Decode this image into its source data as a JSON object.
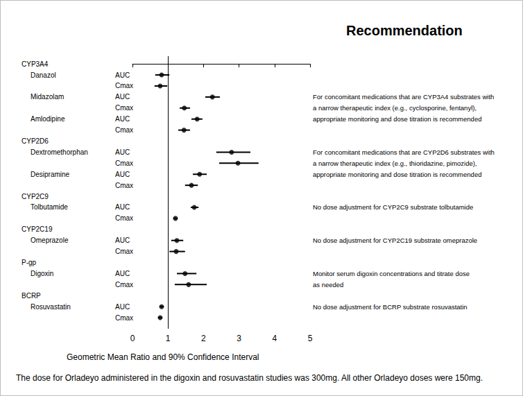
{
  "chart_data": {
    "type": "forest",
    "title": "Recommendation",
    "x_label": "Geometric Mean Ratio and 90% Confidence Interval",
    "footnote": "The dose for Orladeyo administered in the digoxin and rosuvastatin studies was 300mg. All other Orladeyo doses were 150mg.",
    "xlim": [
      0,
      5
    ],
    "xticks": [
      0,
      1,
      2,
      3,
      4,
      5
    ],
    "reference_line": 1,
    "color": "#000000",
    "groups": [
      {
        "name": "CYP3A4",
        "recommendation": [
          "For concomitant medications that are CYP3A4 substrates with",
          "a narrow therapeutic index (e.g., cyclosporine, fentanyl),",
          "appropriate monitoring and dose titration is recommended"
        ],
        "drugs": [
          {
            "name": "Danazol",
            "measures": [
              {
                "label": "AUC",
                "value": 0.82,
                "ci": [
                  0.64,
                  1.04
                ]
              },
              {
                "label": "Cmax",
                "value": 0.78,
                "ci": [
                  0.62,
                  0.98
                ]
              }
            ]
          },
          {
            "name": "Midazolam",
            "measures": [
              {
                "label": "AUC",
                "value": 2.25,
                "ci": [
                  2.05,
                  2.46
                ]
              },
              {
                "label": "Cmax",
                "value": 1.46,
                "ci": [
                  1.33,
                  1.62
                ]
              }
            ]
          },
          {
            "name": "Amlodipine",
            "measures": [
              {
                "label": "AUC",
                "value": 1.82,
                "ci": [
                  1.66,
                  1.97
                ]
              },
              {
                "label": "Cmax",
                "value": 1.45,
                "ci": [
                  1.29,
                  1.62
                ]
              }
            ]
          }
        ]
      },
      {
        "name": "CYP2D6",
        "recommendation": [
          "For concomitant medications that are CYP2D6 substrates with",
          "a narrow therapeutic index (e.g., thioridazine, pimozide),",
          "appropriate monitoring and dose titration is recommended"
        ],
        "drugs": [
          {
            "name": "Dextromethorphan",
            "measures": [
              {
                "label": "AUC",
                "value": 2.79,
                "ci": [
                  2.36,
                  3.32
                ]
              },
              {
                "label": "Cmax",
                "value": 2.97,
                "ci": [
                  2.44,
                  3.55
                ]
              }
            ]
          },
          {
            "name": "Desipramine",
            "measures": [
              {
                "label": "AUC",
                "value": 1.89,
                "ci": [
                  1.7,
                  2.09
                ]
              },
              {
                "label": "Cmax",
                "value": 1.66,
                "ci": [
                  1.48,
                  1.84
                ]
              }
            ]
          }
        ]
      },
      {
        "name": "CYP2C9",
        "recommendation": [
          "No dose adjustment for CYP2C9 substrate tolbutamide"
        ],
        "drugs": [
          {
            "name": "Tolbutamide",
            "measures": [
              {
                "label": "AUC",
                "value": 1.74,
                "ci": [
                  1.64,
                  1.86
                ]
              },
              {
                "label": "Cmax",
                "value": 1.21,
                "ci": [
                  1.15,
                  1.27
                ]
              }
            ]
          }
        ]
      },
      {
        "name": "CYP2C19",
        "recommendation": [
          "No dose adjustment for CYP2C19 substrate omeprazole"
        ],
        "drugs": [
          {
            "name": "Omeprazole",
            "measures": [
              {
                "label": "AUC",
                "value": 1.25,
                "ci": [
                  1.09,
                  1.43
                ]
              },
              {
                "label": "Cmax",
                "value": 1.23,
                "ci": [
                  1.04,
                  1.48
                ]
              }
            ]
          }
        ]
      },
      {
        "name": "P-gp",
        "recommendation": [
          "Monitor serum digoxin concentrations and titrate dose",
          "as needed"
        ],
        "drugs": [
          {
            "name": "Digoxin",
            "measures": [
              {
                "label": "AUC",
                "value": 1.48,
                "ci": [
                  1.25,
                  1.8
                ]
              },
              {
                "label": "Cmax",
                "value": 1.58,
                "ci": [
                  1.19,
                  2.09
                ]
              }
            ]
          }
        ]
      },
      {
        "name": "BCRP",
        "recommendation": [
          "No dose adjustment for BCRP substrate rosuvastatin"
        ],
        "drugs": [
          {
            "name": "Rosuvastatin",
            "measures": [
              {
                "label": "AUC",
                "value": 0.82,
                "ci": [
                  0.76,
                  0.88
                ]
              },
              {
                "label": "Cmax",
                "value": 0.78,
                "ci": [
                  0.72,
                  0.84
                ]
              }
            ]
          }
        ]
      }
    ]
  }
}
